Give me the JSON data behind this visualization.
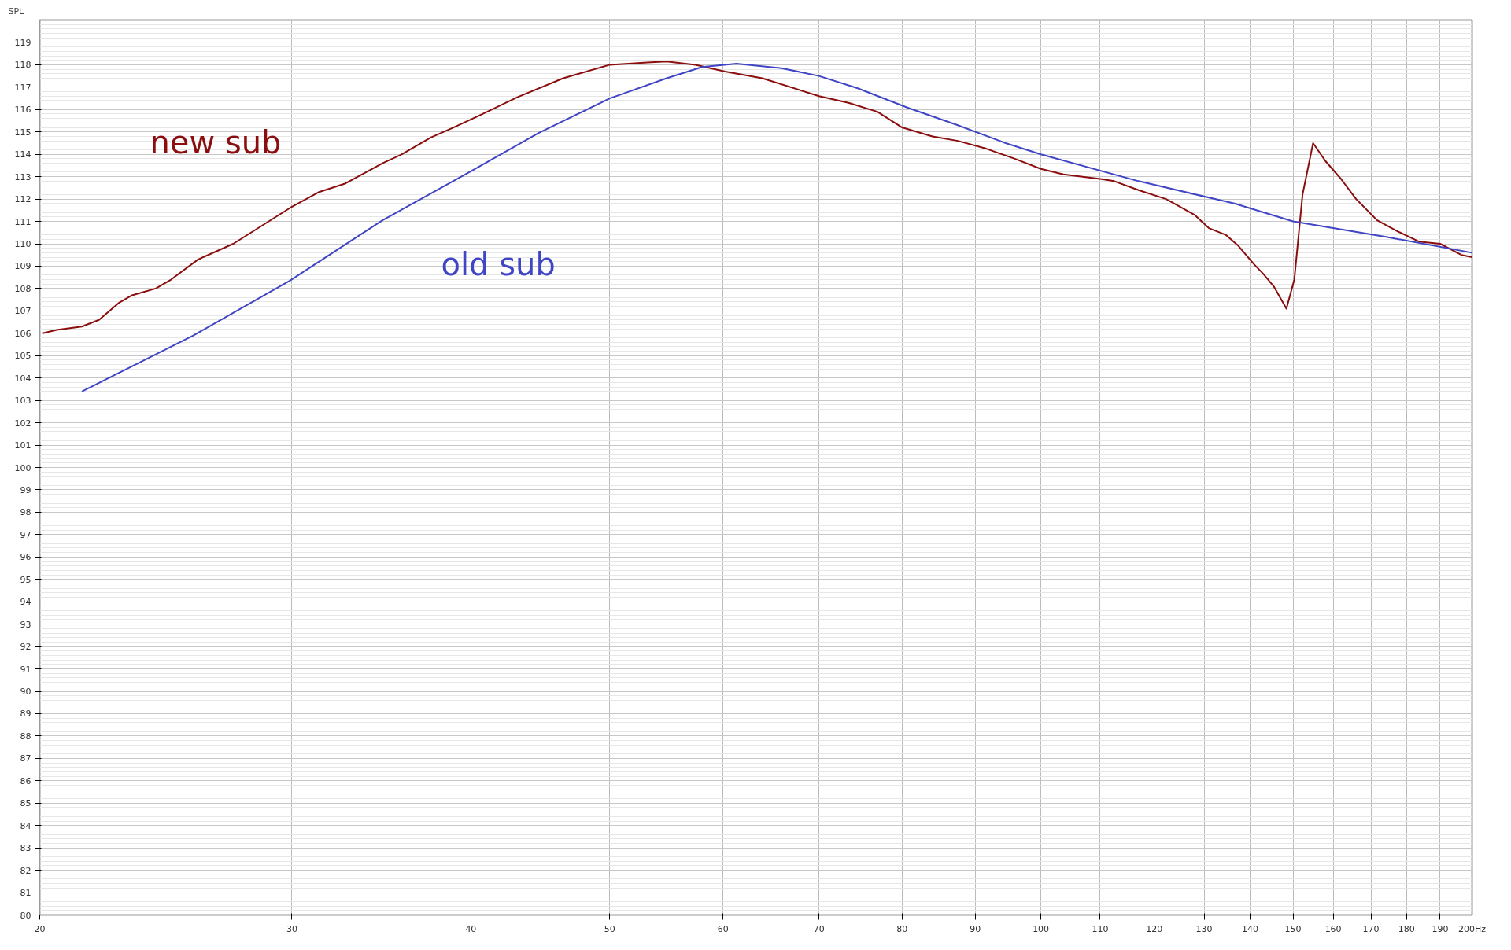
{
  "chart_data": {
    "type": "line",
    "ylabel": "SPL",
    "log": "x",
    "grid": true,
    "legend": false,
    "xlim": [
      20,
      200
    ],
    "xticks": [
      20,
      30,
      40,
      50,
      60,
      70,
      80,
      90,
      100,
      110,
      120,
      130,
      140,
      150,
      160,
      170,
      180,
      190,
      {
        "value": 200,
        "label": "200Hz"
      }
    ],
    "ylim": [
      80,
      120
    ],
    "yticks": [
      80,
      81,
      82,
      83,
      84,
      85,
      86,
      87,
      88,
      89,
      90,
      91,
      92,
      93,
      94,
      95,
      96,
      97,
      98,
      99,
      100,
      101,
      102,
      103,
      104,
      105,
      106,
      107,
      108,
      109,
      110,
      111,
      112,
      113,
      114,
      115,
      116,
      117,
      118,
      119
    ],
    "series": [
      {
        "name": "new sub",
        "color": "#8b0d0d",
        "x": [
          20.1,
          20.55,
          21.4,
          22.0,
          22.7,
          23.2,
          24.1,
          24.7,
          25.8,
          27.3,
          29.9,
          31.3,
          32.7,
          34.7,
          35.8,
          37.5,
          38.9,
          40.6,
          43.1,
          46.4,
          50.0,
          53.1,
          54.8,
          57.4,
          60.2,
          63.9,
          70,
          73.4,
          76.9,
          80,
          84,
          87.5,
          91.6,
          95.9,
          100,
          103.7,
          110,
          112.5,
          117,
          122.3,
          128,
          131,
          134.6,
          137.4,
          140.8,
          143,
          145.4,
          148.4,
          150.3,
          152.3,
          154.9,
          158,
          162,
          166,
          171.7,
          177.5,
          183.6,
          190,
          196.6,
          200
        ],
        "values": [
          106.0,
          106.15,
          106.3,
          106.6,
          107.35,
          107.7,
          108.0,
          108.4,
          109.3,
          110.0,
          111.6,
          112.3,
          112.7,
          113.6,
          114.0,
          114.75,
          115.2,
          115.75,
          116.55,
          117.4,
          118.0,
          118.1,
          118.15,
          118.0,
          117.7,
          117.4,
          116.6,
          116.3,
          115.9,
          115.2,
          114.8,
          114.6,
          114.25,
          113.8,
          113.35,
          113.1,
          112.9,
          112.8,
          112.4,
          112.0,
          111.3,
          110.7,
          110.4,
          109.9,
          109.1,
          108.65,
          108.1,
          107.1,
          108.4,
          112.2,
          114.5,
          113.7,
          112.9,
          112.0,
          111.05,
          110.55,
          110.1,
          110.0,
          109.5,
          109.4
        ]
      },
      {
        "name": "old sub",
        "color": "#3f45c4",
        "x": [
          21.4,
          25.6,
          29.9,
          34.7,
          39.9,
          44.6,
          50,
          54.8,
          58.0,
          61.3,
          65.9,
          70,
          74.5,
          80.6,
          87.5,
          94.5,
          100,
          117,
          136.5,
          150,
          174.5,
          200
        ],
        "values": [
          103.4,
          105.9,
          108.35,
          111.05,
          113.2,
          114.95,
          116.5,
          117.4,
          117.9,
          118.05,
          117.85,
          117.5,
          116.95,
          116.1,
          115.3,
          114.5,
          114.0,
          112.8,
          111.8,
          111.0,
          110.3,
          109.6
        ]
      }
    ]
  }
}
